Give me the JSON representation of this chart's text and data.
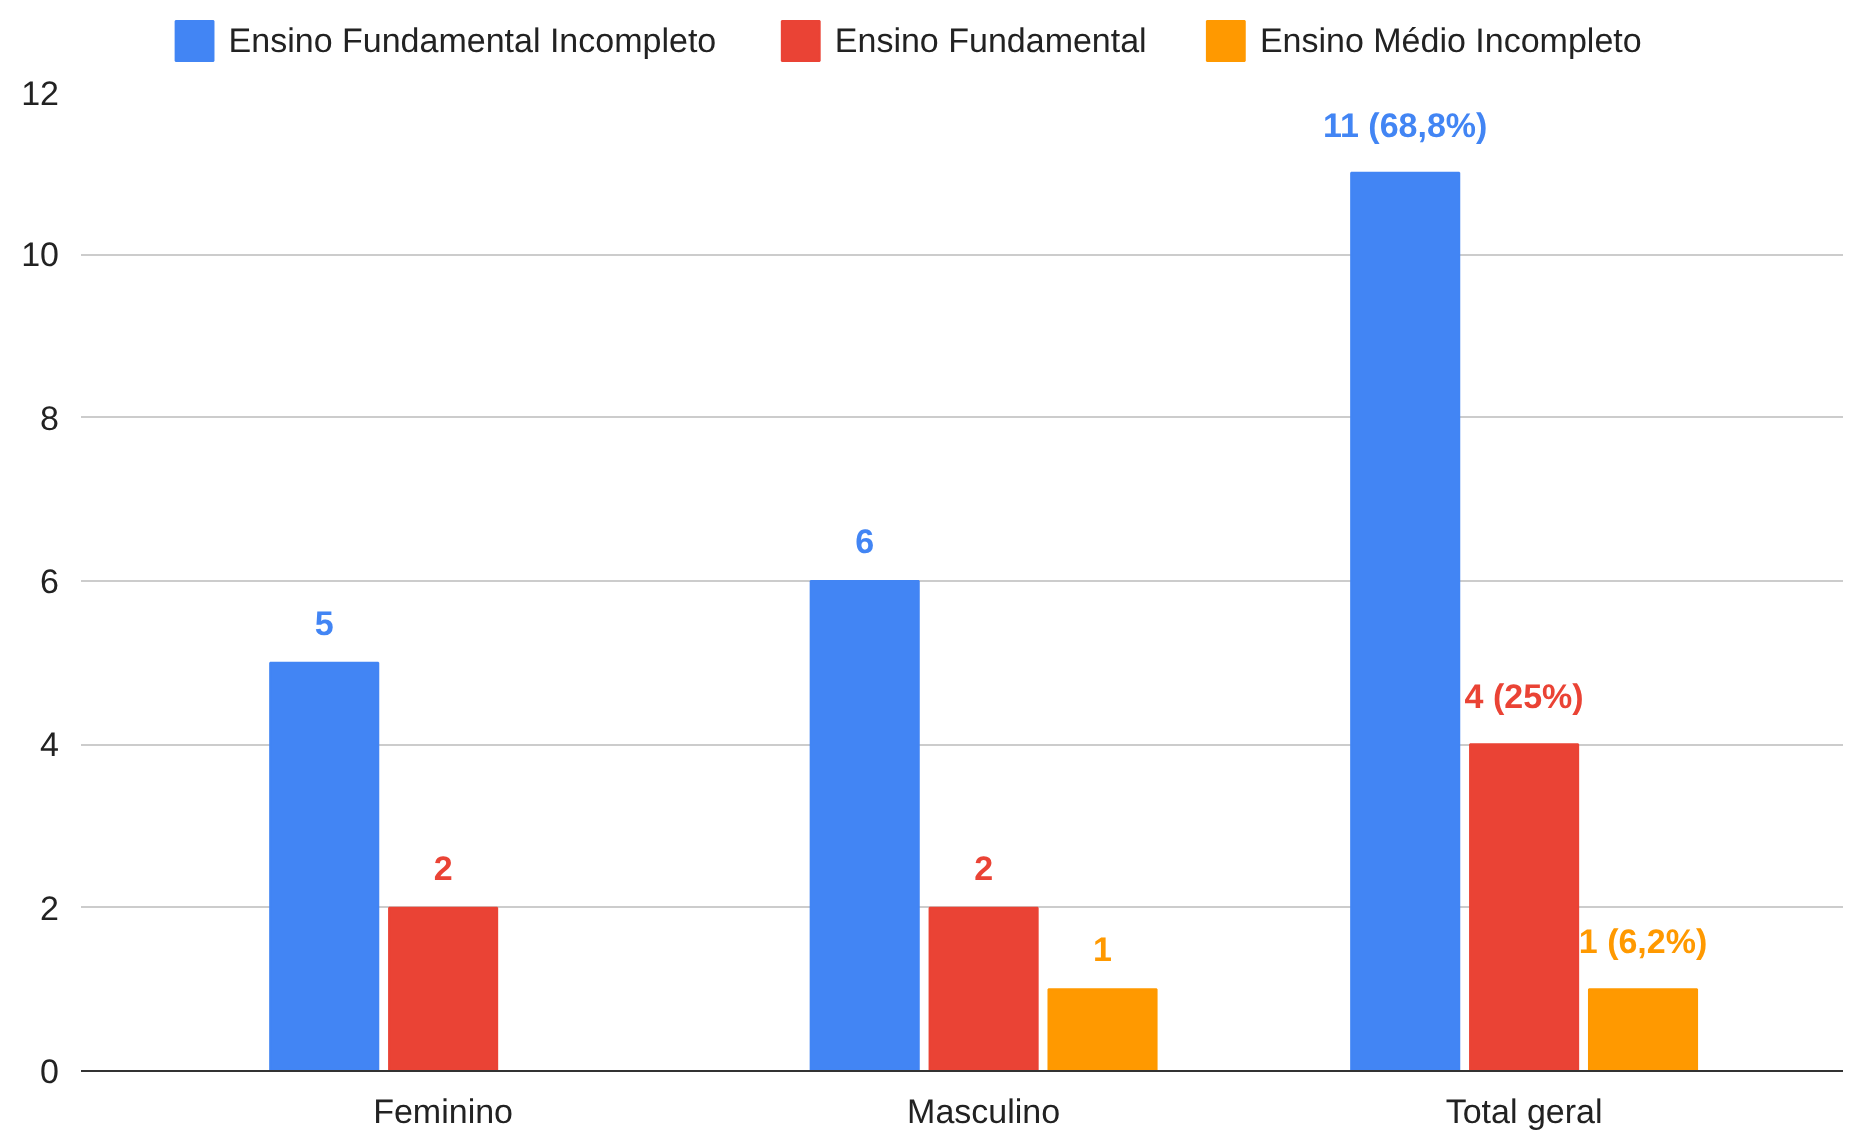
{
  "chart_data": {
    "type": "bar",
    "categories": [
      "Feminino",
      "Masculino",
      "Total geral"
    ],
    "series": [
      {
        "name": "Ensino Fundamental Incompleto",
        "color": "#4285f4",
        "values": [
          5,
          6,
          11
        ],
        "value_labels": [
          "5",
          "6",
          "11 (68,8%)"
        ]
      },
      {
        "name": "Ensino Fundamental",
        "color": "#ea4335",
        "values": [
          2,
          2,
          4
        ],
        "value_labels": [
          "2",
          "2",
          "4 (25%)"
        ]
      },
      {
        "name": "Ensino Médio Incompleto",
        "color": "#ff9900",
        "values": [
          null,
          1,
          1
        ],
        "value_labels": [
          null,
          "1",
          "1 (6,2%)"
        ]
      }
    ],
    "ylim": [
      0,
      12
    ],
    "yticks": [
      0,
      2,
      4,
      6,
      8,
      10,
      12
    ],
    "grid": "y",
    "legend": "top"
  }
}
